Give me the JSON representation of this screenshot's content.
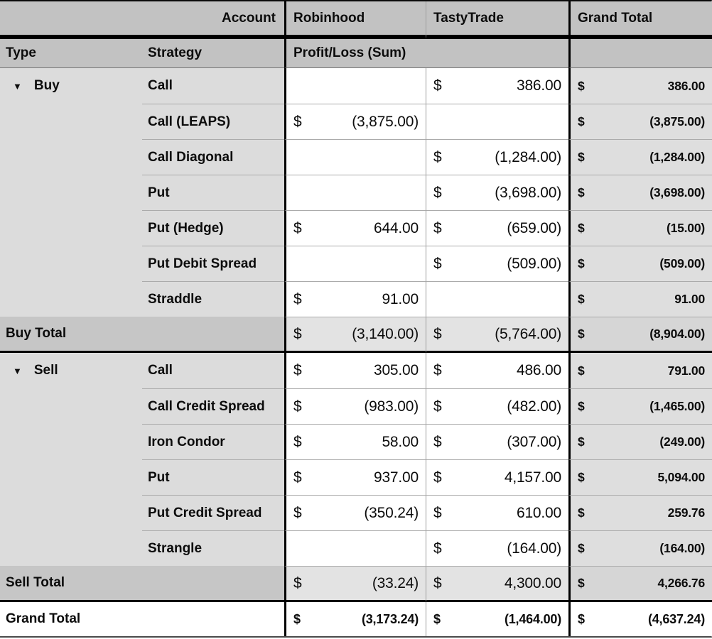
{
  "pivot_table": {
    "corner_label": "Account",
    "column_headers": [
      "Robinhood",
      "TastyTrade",
      "Grand Total"
    ],
    "row_headers": {
      "type": "Type",
      "strategy": "Strategy"
    },
    "measure_label": "Profit/Loss (Sum)",
    "currency_symbol": "$",
    "collapse_icon": "▼",
    "sections": [
      {
        "type": "Buy",
        "rows": [
          {
            "strategy": "Call",
            "robinhood": "",
            "tastytrade": "386.00",
            "grand_total": "386.00"
          },
          {
            "strategy": "Call (LEAPS)",
            "robinhood": "(3,875.00)",
            "tastytrade": "",
            "grand_total": "(3,875.00)"
          },
          {
            "strategy": "Call Diagonal",
            "robinhood": "",
            "tastytrade": "(1,284.00)",
            "grand_total": "(1,284.00)"
          },
          {
            "strategy": "Put",
            "robinhood": "",
            "tastytrade": "(3,698.00)",
            "grand_total": "(3,698.00)"
          },
          {
            "strategy": "Put (Hedge)",
            "robinhood": "644.00",
            "tastytrade": "(659.00)",
            "grand_total": "(15.00)"
          },
          {
            "strategy": "Put Debit Spread",
            "robinhood": "",
            "tastytrade": "(509.00)",
            "grand_total": "(509.00)"
          },
          {
            "strategy": "Straddle",
            "robinhood": "91.00",
            "tastytrade": "",
            "grand_total": "91.00"
          }
        ],
        "total": {
          "label": "Buy Total",
          "robinhood": "(3,140.00)",
          "tastytrade": "(5,764.00)",
          "grand_total": "(8,904.00)"
        }
      },
      {
        "type": "Sell",
        "rows": [
          {
            "strategy": "Call",
            "robinhood": "305.00",
            "tastytrade": "486.00",
            "grand_total": "791.00"
          },
          {
            "strategy": "Call Credit Spread",
            "robinhood": "(983.00)",
            "tastytrade": "(482.00)",
            "grand_total": "(1,465.00)"
          },
          {
            "strategy": "Iron Condor",
            "robinhood": "58.00",
            "tastytrade": "(307.00)",
            "grand_total": "(249.00)"
          },
          {
            "strategy": "Put",
            "robinhood": "937.00",
            "tastytrade": "4,157.00",
            "grand_total": "5,094.00"
          },
          {
            "strategy": "Put Credit Spread",
            "robinhood": "(350.24)",
            "tastytrade": "610.00",
            "grand_total": "259.76"
          },
          {
            "strategy": "Strangle",
            "robinhood": "",
            "tastytrade": "(164.00)",
            "grand_total": "(164.00)"
          }
        ],
        "total": {
          "label": "Sell Total",
          "robinhood": "(33.24)",
          "tastytrade": "4,300.00",
          "grand_total": "4,266.76"
        }
      }
    ],
    "grand_total_row": {
      "label": "Grand Total",
      "robinhood": "(3,173.24)",
      "tastytrade": "(1,464.00)",
      "grand_total": "(4,637.24)"
    },
    "colors": {
      "header_bg": "#c2c2c2",
      "row_header_bg": "#dcdcdc",
      "grand_total_col_bg": "#dedede",
      "total_label_bg": "#c6c6c6",
      "total_value_bg": "#e3e3e3",
      "total_grand_bg": "#d6d6d6",
      "grid_line": "#ababab",
      "heavy_line": "#000000"
    }
  }
}
